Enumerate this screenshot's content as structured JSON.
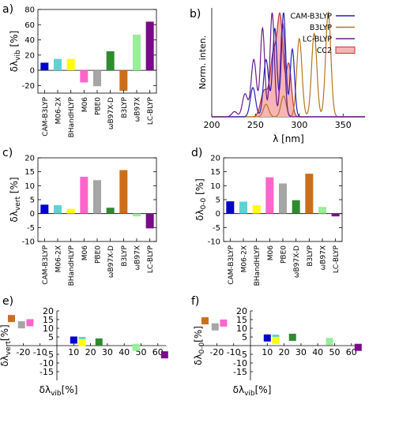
{
  "panel_labels": [
    "a)",
    "b)",
    "c)",
    "d)",
    "e)",
    "f)"
  ],
  "chart_data": [
    {
      "panel": "a)",
      "type": "bar",
      "ylabel_main": "δλ",
      "ylabel_sub": "vib",
      "ylabel_unit": " [%]",
      "categories": [
        "CAM-B3LYP",
        "M06-2X",
        "BHandHLYP",
        "M06",
        "PBE0",
        "ωB97X-D",
        "B3LYP",
        "ωB97X",
        "LC-BLYP"
      ],
      "values": [
        10,
        15,
        15,
        -16,
        -21,
        25,
        -27,
        47,
        64
      ],
      "colors": [
        "#0000cc",
        "#5fd3d3",
        "#ffff00",
        "#ff66cc",
        "#a6a6a6",
        "#2e8b2e",
        "#cc6f1a",
        "#99ee99",
        "#7a0a8a"
      ],
      "ylim": [
        -30,
        80
      ],
      "yticks": [
        -20,
        0,
        20,
        40,
        60,
        80
      ]
    },
    {
      "panel": "b)",
      "type": "line",
      "ylabel": "Norm. inten.",
      "xlabel": "λ [nm]",
      "xlim": [
        200,
        375
      ],
      "xticks": [
        200,
        250,
        300,
        350
      ],
      "series": [
        {
          "name": "CAM-B3LYP",
          "color": "#2222bb",
          "peaks": [
            [
              247,
              0.28,
              3
            ],
            [
              262,
              0.55,
              3
            ],
            [
              272,
              0.85,
              2.5
            ],
            [
              282,
              1.0,
              2.5
            ],
            [
              292,
              0.65,
              2.5
            ]
          ]
        },
        {
          "name": "B3LYP",
          "color": "#b5761c",
          "peaks": [
            [
              262,
              0.12,
              3
            ],
            [
              282,
              0.2,
              3
            ],
            [
              300,
              0.75,
              3
            ],
            [
              317,
              0.8,
              3
            ],
            [
              333,
              1.0,
              3
            ]
          ]
        },
        {
          "name": "LC-BLYP",
          "color": "#6a1b8a",
          "peaks": [
            [
              226,
              0.05,
              3
            ],
            [
              238,
              0.22,
              3
            ],
            [
              248,
              0.55,
              3
            ],
            [
              258,
              0.85,
              2.5
            ],
            [
              269,
              1.0,
              2.5
            ],
            [
              281,
              0.9,
              2.5
            ]
          ]
        },
        {
          "name": "CC2",
          "color": "#cc3333",
          "fill": "#f7b5b5",
          "peaks": [
            [
              260,
              0.25,
              4
            ],
            [
              270,
              0.55,
              3.5
            ],
            [
              278,
              0.95,
              3.5
            ],
            [
              288,
              0.5,
              3
            ]
          ]
        }
      ]
    },
    {
      "panel": "c)",
      "type": "bar",
      "ylabel_main": "δλ",
      "ylabel_sub": "vert",
      "ylabel_unit": " [%]",
      "categories": [
        "CAM-B3LYP",
        "M06-2X",
        "BHandHLYP",
        "M06",
        "PBE0",
        "ωB97X-D",
        "B3LYP",
        "ωB97X",
        "LC-BLYP"
      ],
      "values": [
        3.2,
        3.0,
        1.7,
        13.2,
        12.0,
        2.1,
        15.6,
        -1.0,
        -5.3
      ],
      "colors": [
        "#0000cc",
        "#5fd3d3",
        "#ffff00",
        "#ff66cc",
        "#a6a6a6",
        "#2e8b2e",
        "#cc6f1a",
        "#99ee99",
        "#7a0a8a"
      ],
      "ylim": [
        -10,
        20
      ],
      "yticks": [
        -10,
        -5,
        0,
        5,
        10,
        15,
        20
      ]
    },
    {
      "panel": "d)",
      "type": "bar",
      "ylabel_main": "δλ",
      "ylabel_sub": "0-0",
      "ylabel_unit": " [%]",
      "categories": [
        "CAM-B3LYP",
        "M06-2X",
        "BHandHLYP",
        "M06",
        "PBE0",
        "ωB97X-D",
        "B3LYP",
        "ωB97X",
        "LC-BLYP"
      ],
      "values": [
        4.4,
        4.3,
        3.0,
        13.0,
        10.8,
        4.8,
        14.3,
        2.4,
        -1.0
      ],
      "colors": [
        "#0000cc",
        "#5fd3d3",
        "#ffff00",
        "#ff66cc",
        "#a6a6a6",
        "#2e8b2e",
        "#cc6f1a",
        "#99ee99",
        "#7a0a8a"
      ],
      "ylim": [
        -10,
        20
      ],
      "yticks": [
        -10,
        -5,
        0,
        5,
        10,
        15,
        20
      ]
    },
    {
      "panel": "e)",
      "type": "scatter",
      "xlabel_main": "δλ",
      "xlabel_sub": "vib",
      "xlabel_unit": "[%]",
      "ylabel_main": "δλ",
      "ylabel_sub": "vert",
      "ylabel_unit": "[%]",
      "xlim": [
        -30,
        65
      ],
      "ylim": [
        -20,
        20
      ],
      "xticks": [
        -20,
        -10,
        10,
        20,
        30,
        40,
        50,
        60
      ],
      "yticks": [
        -15,
        -10,
        -5,
        5,
        10,
        15,
        20
      ],
      "points": [
        {
          "x": -27,
          "y": 15.6,
          "color": "#cc6f1a"
        },
        {
          "x": -21,
          "y": 12.0,
          "color": "#a6a6a6"
        },
        {
          "x": -16,
          "y": 13.2,
          "color": "#ff66cc"
        },
        {
          "x": 10,
          "y": 3.2,
          "color": "#0000cc"
        },
        {
          "x": 15,
          "y": 3.0,
          "color": "#5fd3d3"
        },
        {
          "x": 15,
          "y": 1.7,
          "color": "#ffff00"
        },
        {
          "x": 25,
          "y": 2.1,
          "color": "#2e8b2e"
        },
        {
          "x": 47,
          "y": -1.0,
          "color": "#99ee99"
        },
        {
          "x": 64,
          "y": -5.3,
          "color": "#7a0a8a"
        }
      ]
    },
    {
      "panel": "f)",
      "type": "scatter",
      "xlabel_main": "δλ",
      "xlabel_sub": "vib",
      "xlabel_unit": "[%]",
      "ylabel_main": "δλ",
      "ylabel_sub": "0-0",
      "ylabel_unit": "[%]",
      "xlim": [
        -30,
        65
      ],
      "ylim": [
        -20,
        20
      ],
      "xticks": [
        -20,
        -10,
        10,
        20,
        30,
        40,
        50,
        60
      ],
      "yticks": [
        -15,
        -10,
        -5,
        5,
        10,
        15,
        20
      ],
      "points": [
        {
          "x": -27,
          "y": 14.3,
          "color": "#cc6f1a"
        },
        {
          "x": -21,
          "y": 10.8,
          "color": "#a6a6a6"
        },
        {
          "x": -16,
          "y": 13.0,
          "color": "#ff66cc"
        },
        {
          "x": 10,
          "y": 4.4,
          "color": "#0000cc"
        },
        {
          "x": 15,
          "y": 4.3,
          "color": "#5fd3d3"
        },
        {
          "x": 15,
          "y": 3.0,
          "color": "#ffff00"
        },
        {
          "x": 25,
          "y": 4.8,
          "color": "#2e8b2e"
        },
        {
          "x": 47,
          "y": 2.4,
          "color": "#99ee99"
        },
        {
          "x": 64,
          "y": -1.0,
          "color": "#7a0a8a"
        }
      ]
    }
  ]
}
